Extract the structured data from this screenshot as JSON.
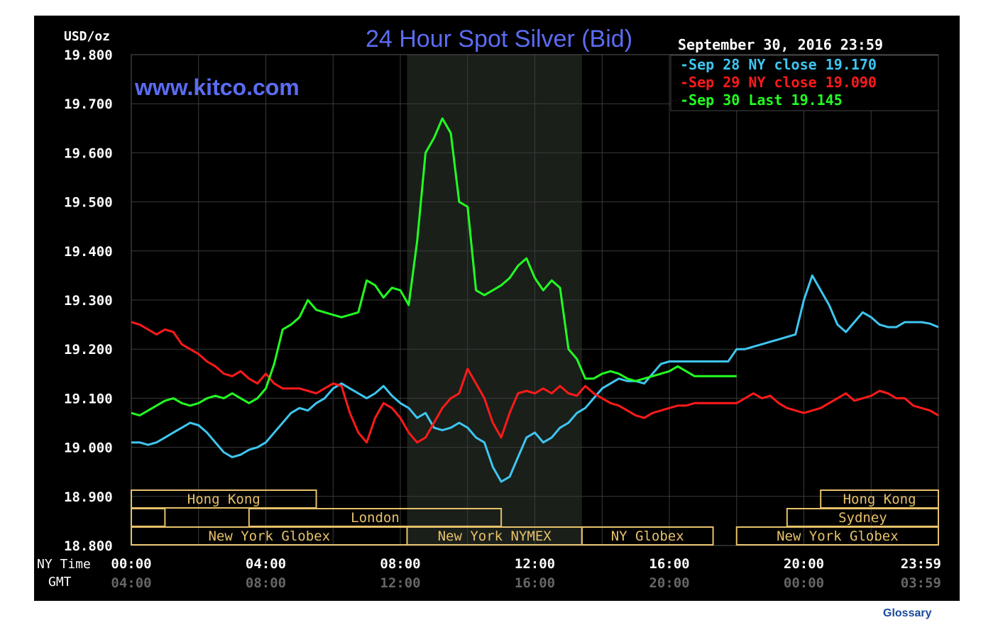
{
  "colors": {
    "background": "#000000",
    "grid": "#3a3a3a",
    "shaded_session": "#1a1f1a",
    "title": "#5b6cf2",
    "sep28": "#3ec6f0",
    "sep29": "#ff1a1a",
    "sep30": "#22ff22",
    "session_box": "#e6c16a"
  },
  "site_label": "www.kitco.com",
  "glossary_link": "Glossary",
  "chart_data": {
    "type": "line",
    "title": "24 Hour Spot Silver (Bid)",
    "ylabel": "USD/oz",
    "date_label": "September 30, 2016 23:59",
    "ylim": [
      18.8,
      19.8
    ],
    "yticks": [
      "19.800",
      "19.700",
      "19.600",
      "19.500",
      "19.400",
      "19.300",
      "19.200",
      "19.100",
      "19.000",
      "18.900",
      "18.800"
    ],
    "xlim": [
      0,
      24
    ],
    "x_row_label": "NY Time",
    "x_row2_label": "GMT",
    "xticks_ny": [
      "00:00",
      "04:00",
      "08:00",
      "12:00",
      "16:00",
      "20:00",
      "23:59"
    ],
    "xticks_gmt": [
      "04:00",
      "08:00",
      "12:00",
      "16:00",
      "20:00",
      "00:00",
      "03:59"
    ],
    "legend": [
      {
        "series": "sep28",
        "text": "Sep 28 NY close 19.170"
      },
      {
        "series": "sep29",
        "text": "Sep 29 NY close 19.090"
      },
      {
        "series": "sep30",
        "text": "Sep 30 Last 19.145"
      }
    ],
    "shaded_hours": [
      8.2,
      13.4
    ],
    "sessions": [
      {
        "label": "Hong Kong",
        "start": 0,
        "end": 5.5,
        "row": 1
      },
      {
        "label": "",
        "start": 0,
        "end": 1,
        "row": 2
      },
      {
        "label": "London",
        "start": 3.5,
        "end": 11.0,
        "row": 2
      },
      {
        "label": "New York Globex",
        "start": 0,
        "end": 8.2,
        "row": 3
      },
      {
        "label": "New York NYMEX",
        "start": 8.2,
        "end": 13.4,
        "row": 3
      },
      {
        "label": "NY Globex",
        "start": 13.4,
        "end": 17.3,
        "row": 3
      },
      {
        "label": "Hong Kong",
        "start": 20.5,
        "end": 24,
        "row": 1
      },
      {
        "label": "Sydney",
        "start": 19.5,
        "end": 24,
        "row": 2
      },
      {
        "label": "New York Globex",
        "start": 18.0,
        "end": 24,
        "row": 3
      }
    ],
    "series": [
      {
        "key": "sep28",
        "x": [
          0,
          0.25,
          0.5,
          0.75,
          1.0,
          1.25,
          1.5,
          1.75,
          2.0,
          2.25,
          2.5,
          2.75,
          3.0,
          3.25,
          3.5,
          3.75,
          4.0,
          4.25,
          4.5,
          4.75,
          5.0,
          5.25,
          5.5,
          5.75,
          6.0,
          6.25,
          6.5,
          6.75,
          7.0,
          7.25,
          7.5,
          7.75,
          8.0,
          8.25,
          8.5,
          8.75,
          9.0,
          9.25,
          9.5,
          9.75,
          10.0,
          10.25,
          10.5,
          10.75,
          11.0,
          11.25,
          11.5,
          11.75,
          12.0,
          12.25,
          12.5,
          12.75,
          13.0,
          13.25,
          13.5,
          13.75,
          14.0,
          14.25,
          14.5,
          14.75,
          15.0,
          15.25,
          15.5,
          15.75,
          16.0,
          16.25,
          16.5,
          16.75,
          17.0,
          17.25,
          17.5,
          17.75,
          18.0,
          18.25,
          18.5,
          18.75,
          19.0,
          19.25,
          19.5,
          19.75,
          20.0,
          20.25,
          20.5,
          20.75,
          21.0,
          21.25,
          21.5,
          21.75,
          22.0,
          22.25,
          22.5,
          22.75,
          23.0,
          23.25,
          23.5,
          23.75,
          24.0
        ],
        "y": [
          19.01,
          19.01,
          19.005,
          19.01,
          19.02,
          19.03,
          19.04,
          19.05,
          19.045,
          19.03,
          19.01,
          18.99,
          18.98,
          18.985,
          18.995,
          19.0,
          19.01,
          19.03,
          19.05,
          19.07,
          19.08,
          19.075,
          19.09,
          19.1,
          19.12,
          19.13,
          19.12,
          19.11,
          19.1,
          19.11,
          19.125,
          19.105,
          19.09,
          19.08,
          19.06,
          19.07,
          19.04,
          19.035,
          19.04,
          19.05,
          19.04,
          19.02,
          19.01,
          18.96,
          18.93,
          18.94,
          18.98,
          19.02,
          19.03,
          19.01,
          19.02,
          19.04,
          19.05,
          19.07,
          19.08,
          19.1,
          19.12,
          19.13,
          19.14,
          19.135,
          19.135,
          19.13,
          19.15,
          19.17,
          19.175,
          19.175,
          19.175,
          19.175,
          19.175,
          19.175,
          19.175,
          19.175,
          19.2,
          19.2,
          19.205,
          19.21,
          19.215,
          19.22,
          19.225,
          19.23,
          19.3,
          19.35,
          19.32,
          19.29,
          19.25,
          19.235,
          19.255,
          19.275,
          19.265,
          19.25,
          19.245,
          19.245,
          19.255,
          19.255,
          19.255,
          19.252,
          19.245
        ]
      },
      {
        "key": "sep29",
        "x": [
          0,
          0.25,
          0.5,
          0.75,
          1.0,
          1.25,
          1.5,
          1.75,
          2.0,
          2.25,
          2.5,
          2.75,
          3.0,
          3.25,
          3.5,
          3.75,
          4.0,
          4.25,
          4.5,
          4.75,
          5.0,
          5.25,
          5.5,
          5.75,
          6.0,
          6.25,
          6.5,
          6.75,
          7.0,
          7.25,
          7.5,
          7.75,
          8.0,
          8.25,
          8.5,
          8.75,
          9.0,
          9.25,
          9.5,
          9.75,
          10.0,
          10.25,
          10.5,
          10.75,
          11.0,
          11.25,
          11.5,
          11.75,
          12.0,
          12.25,
          12.5,
          12.75,
          13.0,
          13.25,
          13.5,
          13.75,
          14.0,
          14.25,
          14.5,
          14.75,
          15.0,
          15.25,
          15.5,
          15.75,
          16.0,
          16.25,
          16.5,
          16.75,
          17.0,
          17.25,
          17.5,
          17.75,
          18.0,
          18.25,
          18.5,
          18.75,
          19.0,
          19.25,
          19.5,
          19.75,
          20.0,
          20.25,
          20.5,
          20.75,
          21.0,
          21.25,
          21.5,
          21.75,
          22.0,
          22.25,
          22.5,
          22.75,
          23.0,
          23.25,
          23.5,
          23.75,
          24.0
        ],
        "y": [
          19.255,
          19.25,
          19.24,
          19.23,
          19.24,
          19.235,
          19.21,
          19.2,
          19.19,
          19.175,
          19.165,
          19.15,
          19.145,
          19.155,
          19.14,
          19.13,
          19.15,
          19.13,
          19.12,
          19.12,
          19.12,
          19.115,
          19.11,
          19.12,
          19.13,
          19.125,
          19.07,
          19.03,
          19.01,
          19.06,
          19.09,
          19.08,
          19.06,
          19.03,
          19.01,
          19.02,
          19.05,
          19.08,
          19.1,
          19.11,
          19.16,
          19.13,
          19.1,
          19.05,
          19.02,
          19.07,
          19.11,
          19.115,
          19.11,
          19.12,
          19.11,
          19.125,
          19.11,
          19.105,
          19.125,
          19.11,
          19.1,
          19.09,
          19.085,
          19.075,
          19.065,
          19.06,
          19.07,
          19.075,
          19.08,
          19.085,
          19.085,
          19.09,
          19.09,
          19.09,
          19.09,
          19.09,
          19.09,
          19.1,
          19.11,
          19.1,
          19.105,
          19.09,
          19.08,
          19.075,
          19.07,
          19.075,
          19.08,
          19.09,
          19.1,
          19.11,
          19.095,
          19.1,
          19.105,
          19.115,
          19.11,
          19.1,
          19.1,
          19.085,
          19.08,
          19.075,
          19.065
        ]
      },
      {
        "key": "sep30",
        "x": [
          0,
          0.25,
          0.5,
          0.75,
          1.0,
          1.25,
          1.5,
          1.75,
          2.0,
          2.25,
          2.5,
          2.75,
          3.0,
          3.25,
          3.5,
          3.75,
          4.0,
          4.25,
          4.5,
          4.75,
          5.0,
          5.25,
          5.5,
          5.75,
          6.0,
          6.25,
          6.5,
          6.75,
          7.0,
          7.25,
          7.5,
          7.75,
          8.0,
          8.25,
          8.5,
          8.75,
          9.0,
          9.25,
          9.5,
          9.75,
          10.0,
          10.25,
          10.5,
          10.75,
          11.0,
          11.25,
          11.5,
          11.75,
          12.0,
          12.25,
          12.5,
          12.75,
          13.0,
          13.25,
          13.5,
          13.75,
          14.0,
          14.25,
          14.5,
          14.75,
          15.0,
          15.25,
          15.5,
          15.75,
          16.0,
          16.25,
          16.5,
          16.75,
          17.0,
          17.25,
          17.5,
          17.75,
          18.0
        ],
        "y": [
          19.07,
          19.065,
          19.075,
          19.085,
          19.095,
          19.1,
          19.09,
          19.085,
          19.09,
          19.1,
          19.105,
          19.1,
          19.11,
          19.1,
          19.09,
          19.1,
          19.12,
          19.17,
          19.24,
          19.25,
          19.265,
          19.3,
          19.28,
          19.275,
          19.27,
          19.265,
          19.27,
          19.275,
          19.34,
          19.33,
          19.305,
          19.325,
          19.32,
          19.29,
          19.42,
          19.6,
          19.63,
          19.67,
          19.64,
          19.5,
          19.49,
          19.32,
          19.31,
          19.32,
          19.33,
          19.345,
          19.37,
          19.385,
          19.345,
          19.32,
          19.34,
          19.325,
          19.2,
          19.18,
          19.14,
          19.14,
          19.15,
          19.155,
          19.15,
          19.14,
          19.135,
          19.14,
          19.145,
          19.15,
          19.155,
          19.165,
          19.155,
          19.145,
          19.145,
          19.145,
          19.145,
          19.145,
          19.145
        ]
      }
    ]
  }
}
